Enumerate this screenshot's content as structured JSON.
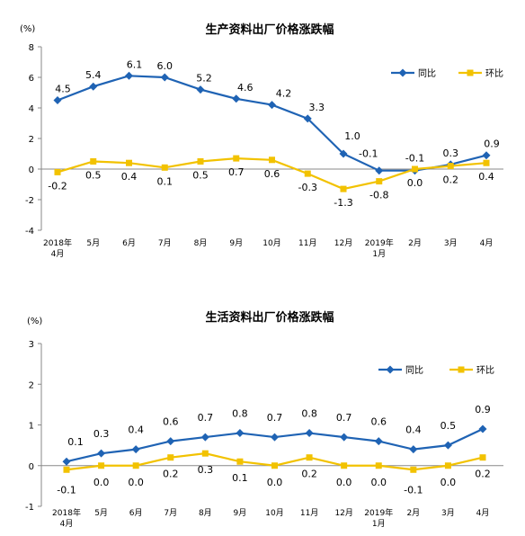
{
  "colors": {
    "yoy": "#1f63b4",
    "mom": "#f2c200"
  },
  "chart_data": [
    {
      "type": "line",
      "title": "生产资料出厂价格涨跌幅",
      "ylabel": "(%)",
      "ylim": [
        -4,
        8
      ],
      "yticks": [
        "8",
        "6",
        "4",
        "2",
        "0",
        "-2",
        "-4"
      ],
      "categories": [
        [
          "2018年",
          "4月"
        ],
        [
          "5月"
        ],
        [
          "6月"
        ],
        [
          "7月"
        ],
        [
          "8月"
        ],
        [
          "9月"
        ],
        [
          "10月"
        ],
        [
          "11月"
        ],
        [
          "12月"
        ],
        [
          "2019年",
          "1月"
        ],
        [
          "2月"
        ],
        [
          "3月"
        ],
        [
          "4月"
        ]
      ],
      "series": [
        {
          "name": "同比",
          "values": [
            4.5,
            5.4,
            6.1,
            6.0,
            5.2,
            4.6,
            4.2,
            3.3,
            1.0,
            -0.1,
            -0.1,
            0.3,
            0.9
          ],
          "labels": [
            "4.5",
            "5.4",
            "6.1",
            "6.0",
            "5.2",
            "4.6",
            "4.2",
            "3.3",
            "1.0",
            "-0.1",
            "-0.1",
            "0.3",
            "0.9"
          ]
        },
        {
          "name": "环比",
          "values": [
            -0.2,
            0.5,
            0.4,
            0.1,
            0.5,
            0.7,
            0.6,
            -0.3,
            -1.3,
            -0.8,
            0.0,
            0.2,
            0.4
          ],
          "labels": [
            "-0.2",
            "0.5",
            "0.4",
            "0.1",
            "0.5",
            "0.7",
            "0.6",
            "-0.3",
            "-1.3",
            "-0.8",
            "0.0",
            "0.2",
            "0.4"
          ]
        }
      ],
      "legend": "top-right",
      "grid": false
    },
    {
      "type": "line",
      "title": "生活资料出厂价格涨跌幅",
      "ylabel": "(%)",
      "ylim": [
        -1,
        3
      ],
      "yticks": [
        "3",
        "2",
        "1",
        "0",
        "-1"
      ],
      "categories": [
        [
          "2018年",
          "4月"
        ],
        [
          "5月"
        ],
        [
          "6月"
        ],
        [
          "7月"
        ],
        [
          "8月"
        ],
        [
          "9月"
        ],
        [
          "10月"
        ],
        [
          "11月"
        ],
        [
          "12月"
        ],
        [
          "2019年",
          "1月"
        ],
        [
          "2月"
        ],
        [
          "3月"
        ],
        [
          "4月"
        ]
      ],
      "series": [
        {
          "name": "同比",
          "values": [
            0.1,
            0.3,
            0.4,
            0.6,
            0.7,
            0.8,
            0.7,
            0.8,
            0.7,
            0.6,
            0.4,
            0.5,
            0.9
          ],
          "labels": [
            "0.1",
            "0.3",
            "0.4",
            "0.6",
            "0.7",
            "0.8",
            "0.7",
            "0.8",
            "0.7",
            "0.6",
            "0.4",
            "0.5",
            "0.9"
          ]
        },
        {
          "name": "环比",
          "values": [
            -0.1,
            0.0,
            0.0,
            0.2,
            0.3,
            0.1,
            0.0,
            0.2,
            0.0,
            0.0,
            -0.1,
            0.0,
            0.2
          ],
          "labels": [
            "-0.1",
            "0.0",
            "0.0",
            "0.2",
            "0.3",
            "0.1",
            "0.0",
            "0.2",
            "0.0",
            "0.0",
            "-0.1",
            "0.0",
            "0.2"
          ]
        }
      ],
      "legend": "top-right",
      "grid": false
    }
  ]
}
